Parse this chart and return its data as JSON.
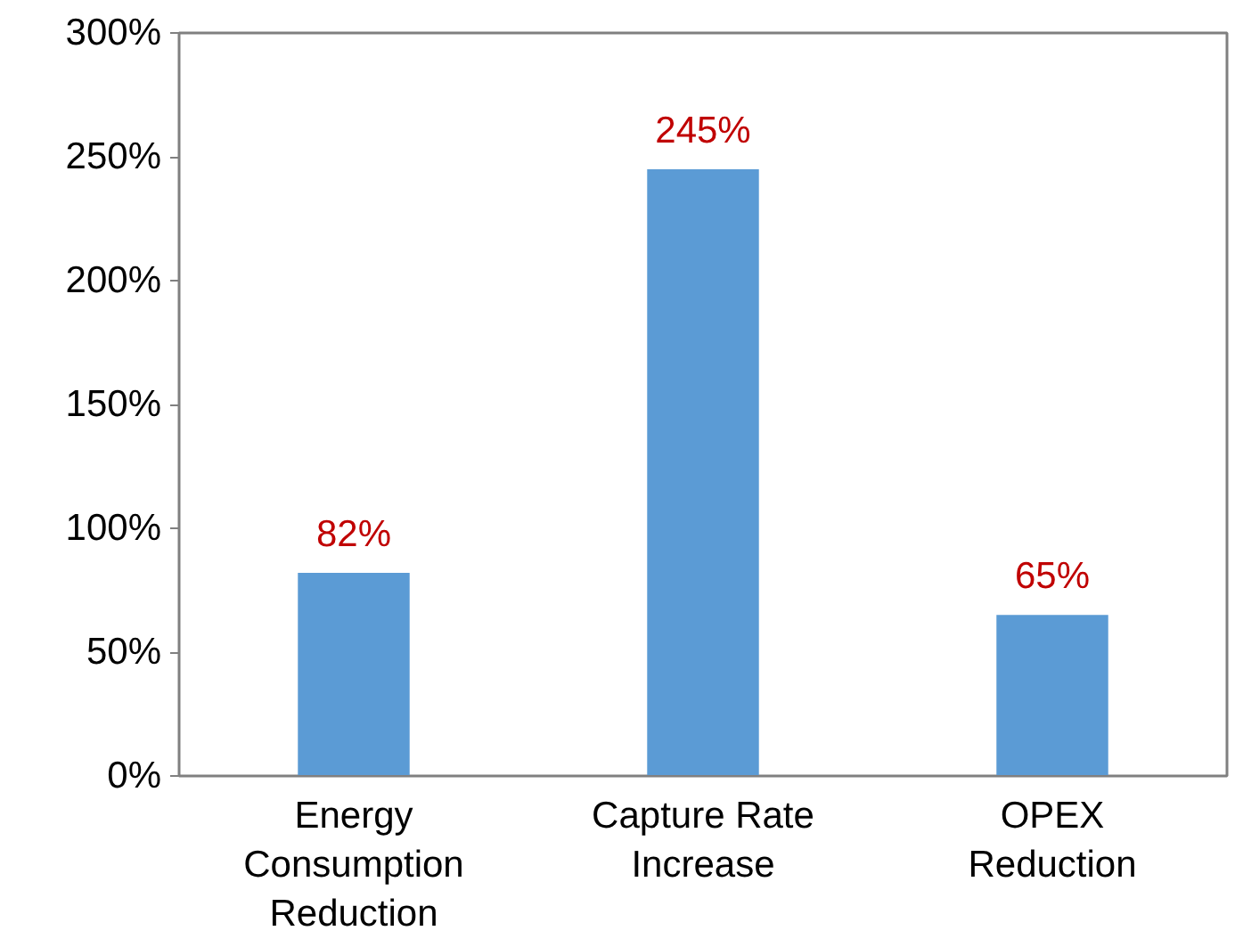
{
  "chart_data": {
    "type": "bar",
    "categories": [
      "Energy Consumption Reduction",
      "Capture Rate Increase",
      "OPEX Reduction"
    ],
    "values": [
      82,
      245,
      65
    ],
    "color": "#5b9bd5",
    "value_labels": [
      "82%",
      "245%",
      "65%"
    ],
    "ylim": [
      0,
      300
    ],
    "yticks": [
      {
        "value": 0,
        "label": "0%"
      },
      {
        "value": 50,
        "label": "50%"
      },
      {
        "value": 100,
        "label": "100%"
      },
      {
        "value": 150,
        "label": "150%"
      },
      {
        "value": 200,
        "label": "200%"
      },
      {
        "value": 250,
        "label": "250%"
      },
      {
        "value": 300,
        "label": "300%"
      }
    ],
    "grid": false
  }
}
